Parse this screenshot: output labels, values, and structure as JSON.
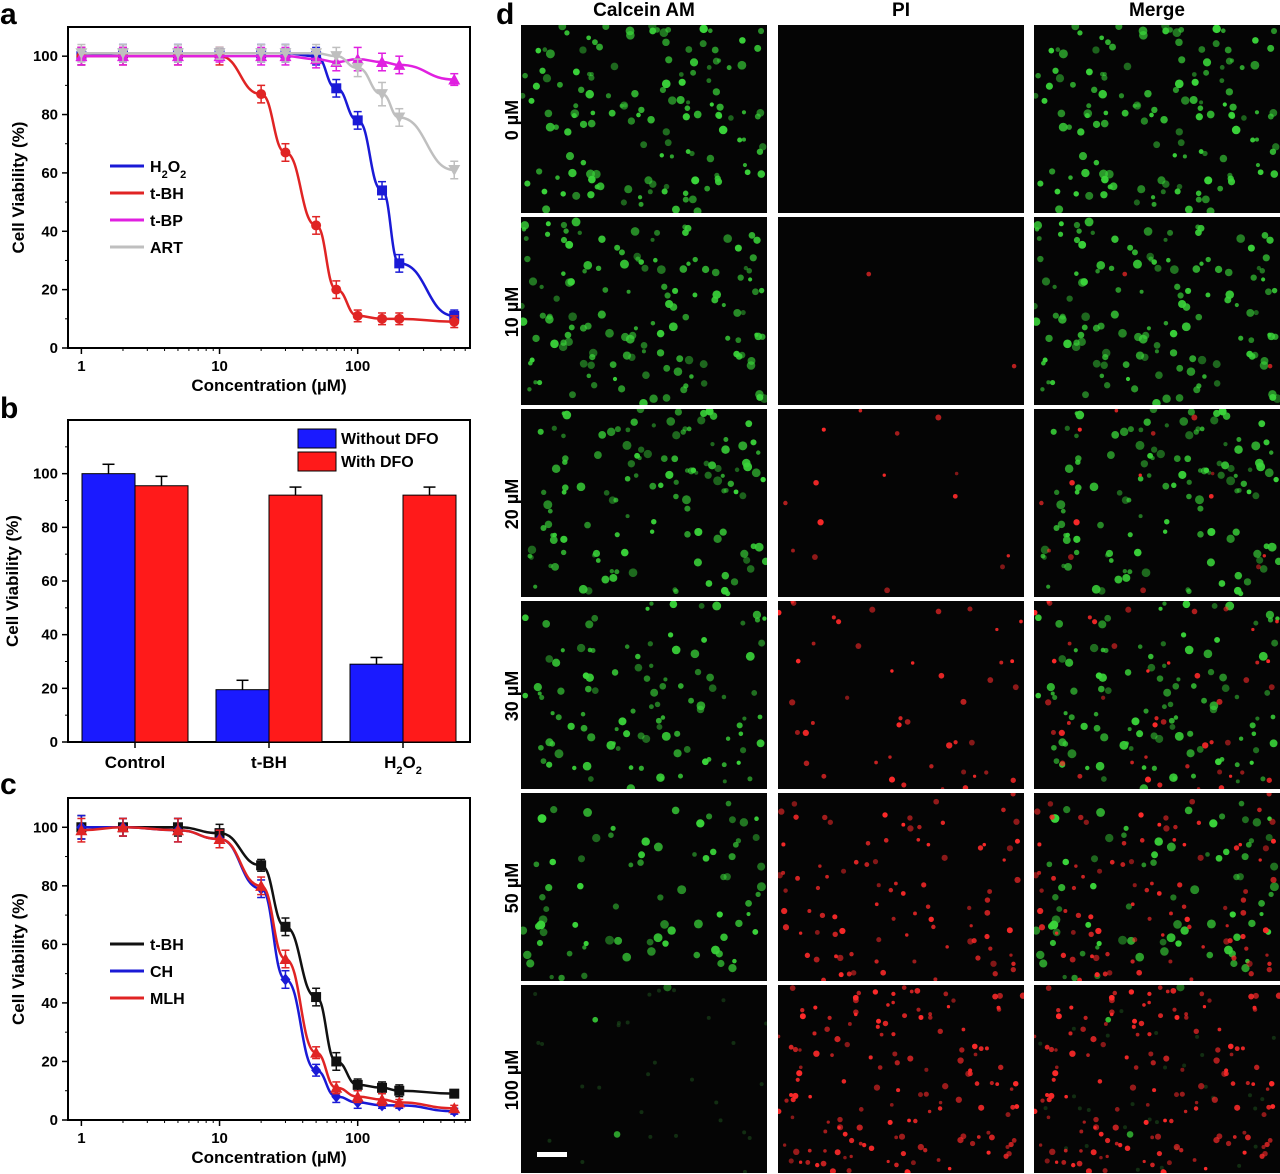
{
  "panels": {
    "a": "a",
    "b": "b",
    "c": "c",
    "d": "d"
  },
  "chart_data": [
    {
      "id": "a",
      "type": "line",
      "xlabel": "Concentration (µM)",
      "ylabel": "Cell Viability (%)",
      "xscale": "log",
      "xlim": [
        0.8,
        650
      ],
      "ylim": [
        0,
        110
      ],
      "xticks": [
        1,
        10,
        100
      ],
      "xtick_labels": [
        "1",
        "10",
        "100"
      ],
      "yticks": [
        0,
        20,
        40,
        60,
        80,
        100
      ],
      "legend_position": "left",
      "series": [
        {
          "name": "H2O2",
          "color": "#1a1ad6",
          "marker": "square",
          "x": [
            1,
            2,
            5,
            10,
            20,
            30,
            50,
            70,
            100,
            150,
            200,
            500
          ],
          "y": [
            100,
            101,
            101,
            101,
            101,
            101,
            100,
            89,
            78,
            54,
            29,
            11
          ],
          "err": [
            3,
            3,
            3,
            2,
            3,
            3,
            3,
            3,
            3,
            3,
            3,
            2
          ]
        },
        {
          "name": "t-BH",
          "color": "#e02424",
          "marker": "circle",
          "x": [
            1,
            2,
            5,
            10,
            20,
            30,
            50,
            70,
            100,
            150,
            200,
            500
          ],
          "y": [
            100,
            100,
            100,
            100,
            87,
            67,
            42,
            20,
            11,
            10,
            10,
            9
          ],
          "err": [
            3,
            3,
            3,
            3,
            3,
            3,
            3,
            3,
            2,
            2,
            2,
            2
          ]
        },
        {
          "name": "t-BP",
          "color": "#e020e0",
          "marker": "triangle",
          "x": [
            1,
            2,
            5,
            10,
            20,
            30,
            50,
            70,
            100,
            150,
            200,
            500
          ],
          "y": [
            100,
            100,
            100,
            100,
            100,
            100,
            99,
            98,
            99,
            98,
            97,
            92
          ],
          "err": [
            3,
            3,
            3,
            2,
            3,
            3,
            3,
            3,
            4,
            3,
            3,
            2
          ]
        },
        {
          "name": "ART",
          "color": "#bfbfbf",
          "marker": "triangle-down",
          "x": [
            1,
            2,
            5,
            10,
            20,
            30,
            50,
            70,
            100,
            150,
            200,
            500
          ],
          "y": [
            101,
            101,
            101,
            101,
            101,
            101,
            101,
            100,
            96,
            87,
            79,
            61
          ],
          "err": [
            3,
            3,
            3,
            2,
            3,
            3,
            3,
            3,
            3,
            4,
            3,
            3
          ]
        }
      ],
      "legend": [
        {
          "label": "H",
          "sub": "2",
          "label2": "O",
          "sub2": "2"
        },
        {
          "label": "t-BH"
        },
        {
          "label": "t-BP"
        },
        {
          "label": "ART"
        }
      ]
    },
    {
      "id": "b",
      "type": "bar",
      "ylabel": "Cell Viability (%)",
      "ylim": [
        0,
        120
      ],
      "yticks": [
        0,
        20,
        40,
        60,
        80,
        100
      ],
      "categories": [
        "Control",
        "t-BH",
        "H2O2"
      ],
      "category_labels": [
        {
          "label": "Control"
        },
        {
          "label": "t-BH"
        },
        {
          "label": "H",
          "sub": "2",
          "label2": "O",
          "sub2": "2"
        }
      ],
      "legend_position": "top-right",
      "series": [
        {
          "name": "Without DFO",
          "color": "#1a1aff",
          "values": [
            100,
            19.5,
            29
          ],
          "err": [
            3.5,
            3.5,
            2.5
          ]
        },
        {
          "name": "With DFO",
          "color": "#ff1a1a",
          "values": [
            95.5,
            92,
            92
          ],
          "err": [
            3.5,
            3,
            3
          ]
        }
      ]
    },
    {
      "id": "c",
      "type": "line",
      "xlabel": "Concentration (µM)",
      "ylabel": "Cell Viability (%)",
      "xscale": "log",
      "xlim": [
        0.8,
        650
      ],
      "ylim": [
        0,
        110
      ],
      "xticks": [
        1,
        10,
        100
      ],
      "xtick_labels": [
        "1",
        "10",
        "100"
      ],
      "yticks": [
        0,
        20,
        40,
        60,
        80,
        100
      ],
      "legend_position": "left",
      "series": [
        {
          "name": "t-BH",
          "color": "#111111",
          "marker": "square",
          "x": [
            1,
            2,
            5,
            10,
            20,
            30,
            50,
            70,
            100,
            150,
            200,
            500
          ],
          "y": [
            100,
            100,
            100,
            98,
            87,
            66,
            42,
            20,
            12,
            11,
            10,
            9
          ],
          "err": [
            4,
            3,
            3,
            3,
            2,
            3,
            3,
            3,
            2,
            2,
            2,
            1
          ]
        },
        {
          "name": "CH",
          "color": "#1a1ad6",
          "marker": "diamond",
          "x": [
            1,
            2,
            5,
            10,
            20,
            30,
            50,
            70,
            100,
            150,
            200,
            500
          ],
          "y": [
            100,
            100,
            99,
            96,
            79,
            48,
            17,
            8,
            6,
            5,
            5,
            3
          ],
          "err": [
            4,
            3,
            4,
            3,
            3,
            3,
            2,
            2,
            2,
            1,
            1,
            1
          ]
        },
        {
          "name": "MLH",
          "color": "#e02424",
          "marker": "triangle",
          "x": [
            1,
            2,
            5,
            10,
            20,
            30,
            50,
            70,
            100,
            150,
            200,
            500
          ],
          "y": [
            99,
            100,
            99,
            96,
            80,
            55,
            23,
            11,
            8,
            7,
            6,
            4
          ],
          "err": [
            4,
            3,
            4,
            3,
            3,
            3,
            2,
            2,
            2,
            2,
            1,
            1
          ]
        }
      ],
      "legend": [
        {
          "label": "t-BH"
        },
        {
          "label": "CH"
        },
        {
          "label": "MLH"
        }
      ]
    }
  ],
  "micrographs": {
    "columns": [
      "Calcein AM",
      "PI",
      "Merge"
    ],
    "rows": [
      "0 µM",
      "10 µM",
      "20 µM",
      "30 µM",
      "50 µM",
      "100 µM"
    ],
    "green_fraction": [
      1.0,
      0.98,
      0.9,
      0.75,
      0.55,
      0.02
    ],
    "red_fraction": [
      0.0,
      0.01,
      0.1,
      0.3,
      0.6,
      0.98
    ]
  }
}
